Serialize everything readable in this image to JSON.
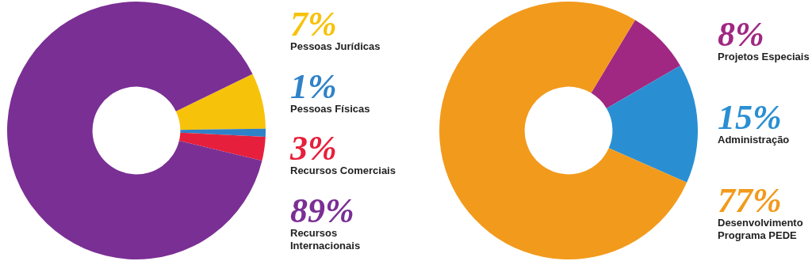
{
  "chart_data": [
    {
      "type": "donut",
      "categories": [
        "Pessoas Jurídicas",
        "Pessoas Físicas",
        "Recursos Comerciais",
        "Recursos Internacionais"
      ],
      "values": [
        7,
        1,
        3,
        89
      ],
      "colors": [
        "#f7c20a",
        "#2f82c8",
        "#e6203c",
        "#7a2f94"
      ],
      "value_labels": [
        "7%",
        "1%",
        "3%",
        "89%"
      ]
    },
    {
      "type": "donut",
      "categories": [
        "Projetos Especiais",
        "Administração",
        "Desenvolvimento Programa PEDE"
      ],
      "values": [
        8,
        15,
        77
      ],
      "colors": [
        "#a02882",
        "#2a8fd2",
        "#f29a1c"
      ],
      "value_labels": [
        "8%",
        "15%",
        "77%"
      ]
    }
  ]
}
